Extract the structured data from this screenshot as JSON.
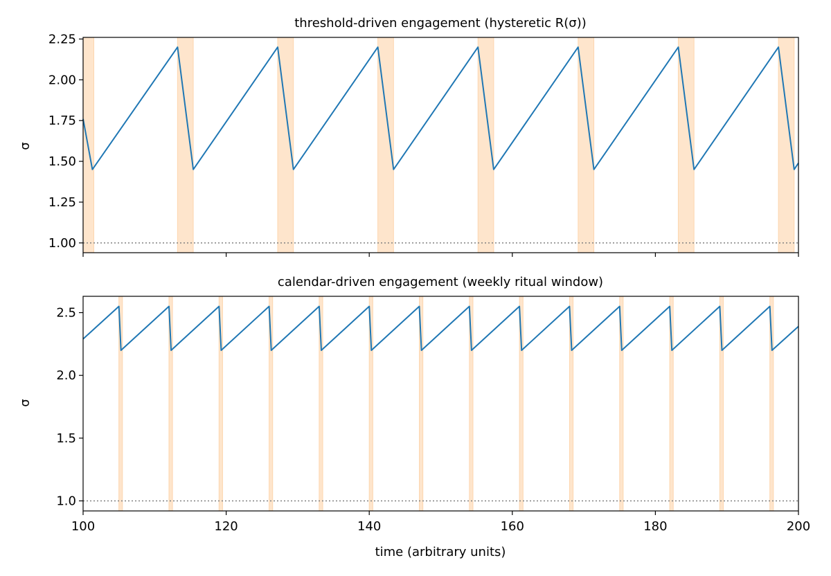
{
  "chart_data": [
    {
      "type": "line",
      "title": "threshold-driven engagement (hysteretic R(σ))",
      "ylabel": "σ",
      "xlabel": "",
      "xlim": [
        100,
        200
      ],
      "ylim": [
        0.94,
        2.26
      ],
      "x_ticks": [
        100,
        120,
        140,
        160,
        180,
        200
      ],
      "x_tick_labels_shown": false,
      "y_ticks": [
        1.0,
        1.25,
        1.5,
        1.75,
        2.0,
        2.25
      ],
      "y_tick_labels": [
        "1.00",
        "1.25",
        "1.50",
        "1.75",
        "2.00",
        "2.25"
      ],
      "reference_line": {
        "y": 1.0,
        "style": "dotted",
        "color": "#808080"
      },
      "series": [
        {
          "color": "#1f77b4",
          "x": [
            100,
            101.3,
            113.2,
            115.4,
            127.2,
            129.4,
            141.2,
            143.4,
            155.2,
            157.4,
            169.2,
            171.4,
            183.2,
            185.4,
            197.2,
            199.4,
            200
          ],
          "y": [
            1.76,
            1.45,
            2.2,
            1.45,
            2.2,
            1.45,
            2.2,
            1.45,
            2.2,
            1.45,
            2.2,
            1.45,
            2.2,
            1.45,
            2.2,
            1.45,
            1.49
          ]
        }
      ],
      "shaded_windows": [
        [
          100,
          101.5
        ],
        [
          113.2,
          115.4
        ],
        [
          127.2,
          129.4
        ],
        [
          141.2,
          143.4
        ],
        [
          155.2,
          157.4
        ],
        [
          169.2,
          171.4
        ],
        [
          183.2,
          185.4
        ],
        [
          197.2,
          199.4
        ]
      ],
      "shade_color": "#fdd0a2",
      "grid": false
    },
    {
      "type": "line",
      "title": "calendar-driven engagement (weekly ritual window)",
      "ylabel": "σ",
      "xlabel": "time (arbitrary units)",
      "xlim": [
        100,
        200
      ],
      "ylim": [
        0.92,
        2.63
      ],
      "x_ticks": [
        100,
        120,
        140,
        160,
        180,
        200
      ],
      "x_tick_labels": [
        "100",
        "120",
        "140",
        "160",
        "180",
        "200"
      ],
      "y_ticks": [
        1.0,
        1.5,
        2.0,
        2.5
      ],
      "y_tick_labels": [
        "1.0",
        "1.5",
        "2.0",
        "2.5"
      ],
      "reference_line": {
        "y": 1.0,
        "style": "dotted",
        "color": "#808080"
      },
      "series": [
        {
          "color": "#1f77b4",
          "x": [
            100,
            105.0,
            105.3,
            112.0,
            112.3,
            119.0,
            119.3,
            126.0,
            126.3,
            133.0,
            133.3,
            140.0,
            140.3,
            147.0,
            147.3,
            154.0,
            154.3,
            161.0,
            161.3,
            168.0,
            168.3,
            175.0,
            175.3,
            182.0,
            182.3,
            189.0,
            189.3,
            196.0,
            196.3,
            200
          ],
          "y": [
            2.29,
            2.55,
            2.2,
            2.55,
            2.2,
            2.55,
            2.2,
            2.55,
            2.2,
            2.55,
            2.2,
            2.55,
            2.2,
            2.55,
            2.2,
            2.55,
            2.2,
            2.55,
            2.2,
            2.55,
            2.2,
            2.55,
            2.2,
            2.55,
            2.2,
            2.55,
            2.2,
            2.55,
            2.2,
            2.39
          ]
        }
      ],
      "shaded_windows": [
        [
          105.0,
          105.5
        ],
        [
          112.0,
          112.5
        ],
        [
          119.0,
          119.5
        ],
        [
          126.0,
          126.5
        ],
        [
          133.0,
          133.5
        ],
        [
          140.0,
          140.5
        ],
        [
          147.0,
          147.5
        ],
        [
          154.0,
          154.5
        ],
        [
          161.0,
          161.5
        ],
        [
          168.0,
          168.5
        ],
        [
          175.0,
          175.5
        ],
        [
          182.0,
          182.5
        ],
        [
          189.0,
          189.5
        ],
        [
          196.0,
          196.5
        ]
      ],
      "shade_color": "#fdd0a2",
      "grid": false
    }
  ]
}
